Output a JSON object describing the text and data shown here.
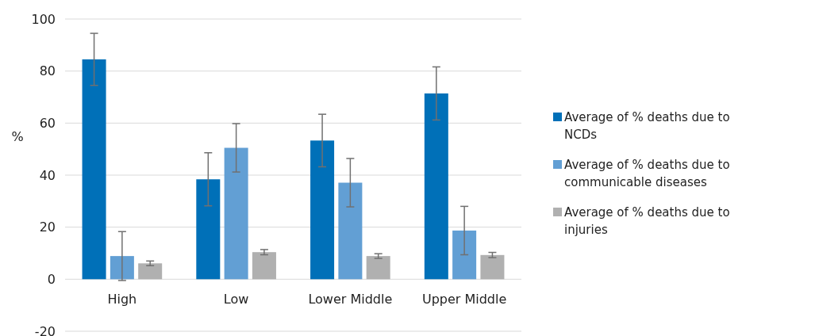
{
  "chart_data": {
    "type": "bar",
    "ylabel": "%",
    "categories": [
      "High",
      "Low",
      "Lower Middle",
      "Upper Middle"
    ],
    "series": [
      {
        "name": "Average of % deaths due to NCDs",
        "color": "#0070b8",
        "values": [
          84.5,
          38.4,
          53.3,
          71.4
        ],
        "errors": [
          10,
          10.2,
          10.1,
          10.2
        ]
      },
      {
        "name": "Average of % deaths due to communicable diseases",
        "color": "#629fd4",
        "values": [
          8.9,
          50.5,
          37.1,
          18.7
        ],
        "errors": [
          9.4,
          9.3,
          9.3,
          9.3
        ]
      },
      {
        "name": "Average of % deaths due to injuries",
        "color": "#b0b0b0",
        "values": [
          6.1,
          10.4,
          8.9,
          9.3
        ],
        "errors": [
          0.9,
          1,
          0.9,
          1
        ]
      }
    ],
    "ylim": [
      -20,
      100
    ],
    "yticks": [
      -20,
      0,
      20,
      40,
      60,
      80,
      100
    ],
    "grid": "y",
    "legend": "right"
  }
}
